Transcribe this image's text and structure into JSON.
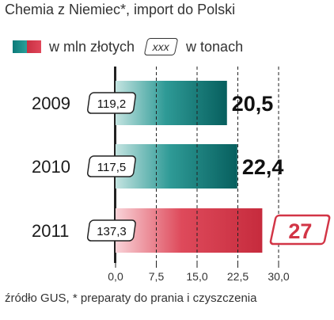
{
  "title": "Chemia z Niemiec*, import do Polski",
  "legend": {
    "mln_label": "w mln złotych",
    "box_sample": "xxx",
    "tons_label": "w tonach"
  },
  "footer": "źródło GUS, * preparaty do prania i czyszczenia",
  "colors": {
    "teal_dark": "#0a6f6d",
    "teal_light": "#bfe2df",
    "red": "#d23546",
    "red_light": "#f7c9cf"
  },
  "chart_data": {
    "type": "bar",
    "orientation": "horizontal",
    "categories": [
      "2009",
      "2010",
      "2011"
    ],
    "series": [
      {
        "name": "w mln złotych",
        "values": [
          20.5,
          22.4,
          27
        ]
      },
      {
        "name": "w tonach",
        "values": [
          119.2,
          117.5,
          137.3
        ]
      }
    ],
    "value_labels": [
      "20,5",
      "22,4",
      "27"
    ],
    "tons_labels": [
      "119,2",
      "117,5",
      "137,3"
    ],
    "xlim": [
      0,
      30
    ],
    "xticks": [
      0,
      7.5,
      15,
      22.5,
      30
    ],
    "xtick_labels": [
      "0,0",
      "7,5",
      "15,0",
      "22,5",
      "30,0"
    ],
    "grid": true,
    "highlight": "2011"
  }
}
